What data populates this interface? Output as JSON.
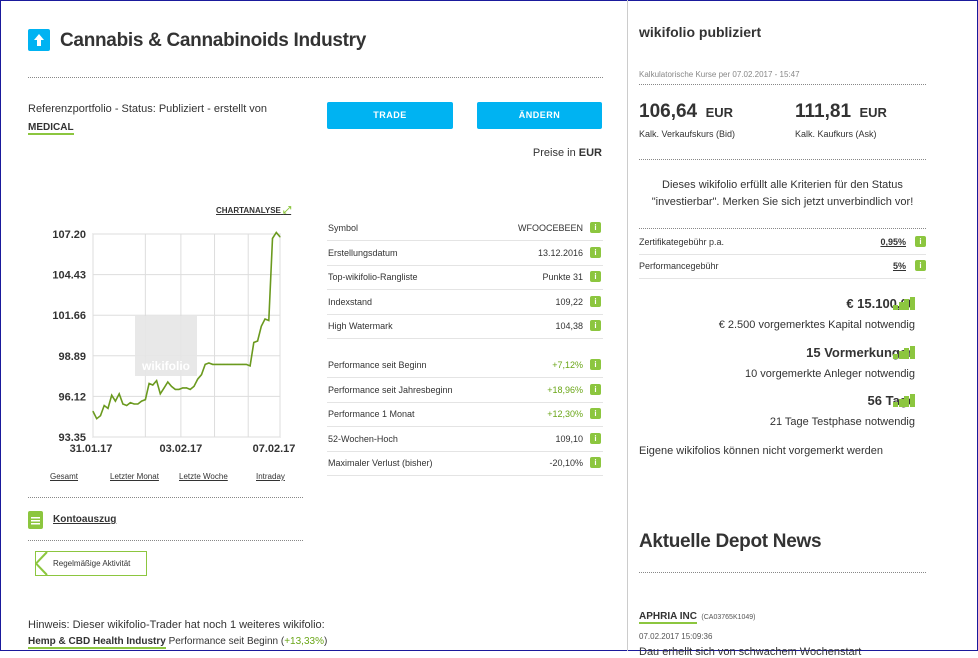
{
  "header": {
    "title": "Cannabis & Cannabinoids Industry",
    "status_prefix": "Referenzportfolio - Status: Publiziert - erstellt von",
    "author": "MEDICAL",
    "trade_button": "TRADE",
    "change_button": "ÄNDERN",
    "currency_label": "Preise in",
    "currency": "EUR"
  },
  "chart": {
    "link": "CHARTANALYSE",
    "watermark": "wikifolio",
    "ranges": [
      "Gesamt",
      "Letzter Monat",
      "Letzte Woche",
      "Intraday"
    ]
  },
  "chart_data": {
    "type": "line",
    "y_ticks": [
      "107.20",
      "104.43",
      "101.66",
      "98.89",
      "96.12",
      "93.35"
    ],
    "x_ticks": [
      "31.01.17",
      "03.02.17",
      "07.02.17"
    ],
    "ylim": [
      93.35,
      107.2
    ],
    "grid": true,
    "series": [
      {
        "points": [
          [
            0,
            95.1
          ],
          [
            2,
            94.6
          ],
          [
            4,
            94.8
          ],
          [
            6,
            95.5
          ],
          [
            8,
            95.3
          ],
          [
            10,
            96.2
          ],
          [
            12,
            95.8
          ],
          [
            14,
            96.3
          ],
          [
            16,
            95.6
          ],
          [
            18,
            95.5
          ],
          [
            20,
            95.7
          ],
          [
            22,
            95.6
          ],
          [
            24,
            95.6
          ],
          [
            26,
            95.8
          ],
          [
            28,
            95.9
          ],
          [
            30,
            97.0
          ],
          [
            32,
            96.9
          ],
          [
            34,
            97.2
          ],
          [
            36,
            96.3
          ],
          [
            38,
            96.7
          ],
          [
            40,
            97.1
          ],
          [
            42,
            96.8
          ],
          [
            44,
            96.6
          ],
          [
            46,
            96.6
          ],
          [
            48,
            96.7
          ],
          [
            50,
            96.7
          ],
          [
            52,
            96.6
          ],
          [
            54,
            96.8
          ],
          [
            56,
            97.3
          ],
          [
            58,
            97.6
          ],
          [
            60,
            98.3
          ],
          [
            62,
            98.4
          ],
          [
            64,
            98.3
          ],
          [
            66,
            98.3
          ],
          [
            68,
            98.3
          ],
          [
            70,
            98.3
          ],
          [
            72,
            98.3
          ],
          [
            74,
            98.3
          ],
          [
            76,
            98.3
          ],
          [
            78,
            98.3
          ],
          [
            80,
            98.3
          ],
          [
            82,
            98.3
          ],
          [
            84,
            98.2
          ],
          [
            86,
            99.8
          ],
          [
            88,
            99.9
          ],
          [
            90,
            100.9
          ],
          [
            92,
            101.4
          ],
          [
            94,
            101.3
          ],
          [
            96,
            106.9
          ],
          [
            98,
            107.3
          ],
          [
            100,
            107.0
          ]
        ]
      }
    ]
  },
  "details": [
    {
      "label": "Symbol",
      "value": "WFOOCEBEEN"
    },
    {
      "label": "Erstellungsdatum",
      "value": "13.12.2016"
    },
    {
      "label": "Top-wikifolio-Rangliste",
      "value": "Punkte 31"
    },
    {
      "label": "Indexstand",
      "value": "109,22"
    },
    {
      "label": "High Watermark",
      "value": "104,38"
    }
  ],
  "performance": [
    {
      "label": "Performance seit Beginn",
      "value": "+7,12%",
      "pos": true
    },
    {
      "label": "Performance seit Jahresbeginn",
      "value": "+18,96%",
      "pos": true
    },
    {
      "label": "Performance 1 Monat",
      "value": "+12,30%",
      "pos": true
    },
    {
      "label": "52-Wochen-Hoch",
      "value": "109,10",
      "pos": false
    },
    {
      "label": "Maximaler Verlust (bisher)",
      "value": "-20,10%",
      "pos": false
    }
  ],
  "links": {
    "statement": "Kontoauszug",
    "activity": "Regelmäßige Aktivität"
  },
  "hint": {
    "text": "Hinweis: Dieser wikifolio-Trader hat noch 1 weiteres wikifolio:",
    "other_name": "Hemp & CBD Health Industry",
    "other_perf_label": "Performance seit Beginn",
    "other_perf_open": "(",
    "other_perf_value": "+13,33%",
    "other_perf_close": ")"
  },
  "sidebar": {
    "status_title": "wikifolio publiziert",
    "quote_time": "Kalkulatorische Kurse per 07.02.2017 - 15:47",
    "bid": "106,64",
    "bid_ccy": "EUR",
    "bid_label": "Kalk. Verkaufskurs (Bid)",
    "ask": "111,81",
    "ask_ccy": "EUR",
    "ask_label": "Kalk. Kaufkurs (Ask)",
    "investable_text": "Dieses wikifolio erfüllt alle Kriterien für den Status \"investierbar\". Merken Sie sich jetzt unverbindlich vor!",
    "fees": [
      {
        "label": "Zertifikategebühr p.a.",
        "value": "0,95%"
      },
      {
        "label": "Performancegebühr",
        "value": "5%"
      }
    ],
    "conditions": [
      {
        "amount": "€ 15.100,00",
        "sub": "€ 2.500 vorgemerktes Kapital notwendig"
      },
      {
        "amount": "15 Vormerkungen",
        "sub": "10 vorgemerkte Anleger notwendig"
      },
      {
        "amount": "56 Tage",
        "sub": "21 Tage Testphase notwendig"
      }
    ],
    "own_note": "Eigene wikifolios können nicht vorgemerkt werden",
    "news_title": "Aktuelle Depot News",
    "news": {
      "company": "APHRIA INC",
      "isin": "(CA03765K1049)",
      "time": "07.02.2017 15:09:36",
      "snippet": "Dau erhellt sich von schwachem Wochenstart"
    }
  },
  "colors": {
    "accent": "#00b3f2",
    "green": "#8cc63f",
    "line": "#6b9a1f"
  }
}
